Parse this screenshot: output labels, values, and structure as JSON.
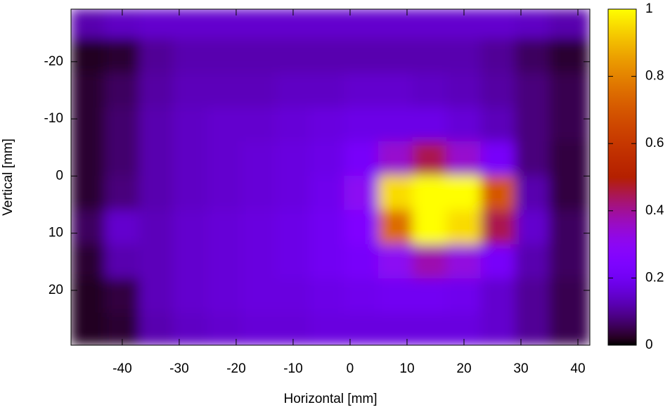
{
  "chart_data": {
    "type": "heatmap",
    "xlabel": "Horizontal [mm]",
    "ylabel": "Vertical [mm]",
    "x": [
      -46,
      -40,
      -34,
      -28,
      -22,
      -16,
      -10,
      -4,
      2,
      8,
      14,
      20,
      26,
      32,
      38
    ],
    "y": [
      -27,
      -21,
      -15,
      -9,
      -3,
      3,
      9,
      15,
      21,
      27
    ],
    "z": [
      [
        0.12,
        0.14,
        0.15,
        0.15,
        0.15,
        0.15,
        0.15,
        0.15,
        0.15,
        0.15,
        0.15,
        0.15,
        0.15,
        0.14,
        0.12
      ],
      [
        0.02,
        0.03,
        0.1,
        0.12,
        0.12,
        0.12,
        0.12,
        0.12,
        0.12,
        0.12,
        0.12,
        0.12,
        0.1,
        0.06,
        0.03
      ],
      [
        0.03,
        0.06,
        0.11,
        0.13,
        0.13,
        0.13,
        0.14,
        0.14,
        0.15,
        0.15,
        0.14,
        0.13,
        0.11,
        0.08,
        0.05
      ],
      [
        0.03,
        0.07,
        0.12,
        0.14,
        0.15,
        0.15,
        0.16,
        0.17,
        0.18,
        0.18,
        0.18,
        0.16,
        0.13,
        0.08,
        0.05
      ],
      [
        0.03,
        0.07,
        0.12,
        0.14,
        0.15,
        0.16,
        0.17,
        0.18,
        0.22,
        0.35,
        0.45,
        0.35,
        0.22,
        0.08,
        0.04
      ],
      [
        0.03,
        0.08,
        0.12,
        0.14,
        0.15,
        0.16,
        0.17,
        0.19,
        0.3,
        0.95,
        1,
        1,
        0.7,
        0.12,
        0.04
      ],
      [
        0.06,
        0.15,
        0.13,
        0.15,
        0.16,
        0.17,
        0.18,
        0.2,
        0.25,
        0.75,
        1,
        0.95,
        0.45,
        0.15,
        0.06
      ],
      [
        0.03,
        0.12,
        0.13,
        0.15,
        0.16,
        0.17,
        0.18,
        0.2,
        0.22,
        0.3,
        0.38,
        0.33,
        0.22,
        0.12,
        0.06
      ],
      [
        0.02,
        0.04,
        0.13,
        0.15,
        0.16,
        0.17,
        0.17,
        0.18,
        0.19,
        0.2,
        0.2,
        0.19,
        0.15,
        0.1,
        0.05
      ],
      [
        0.02,
        0.03,
        0.12,
        0.14,
        0.15,
        0.16,
        0.16,
        0.17,
        0.17,
        0.17,
        0.17,
        0.17,
        0.15,
        0.1,
        0.05
      ]
    ],
    "xlim": [
      -49,
      42.1
    ],
    "xticks": [
      -40,
      -30,
      -20,
      -10,
      0,
      10,
      20,
      30,
      40
    ],
    "ylim": [
      -29.2,
      29.6
    ],
    "y_reversed": true,
    "yticks": [
      -20,
      -10,
      0,
      10,
      20
    ],
    "zlim": [
      0,
      1
    ],
    "zticks": [
      0,
      0.2,
      0.4,
      0.6,
      0.8,
      1
    ],
    "colormap": "gnuplot"
  }
}
